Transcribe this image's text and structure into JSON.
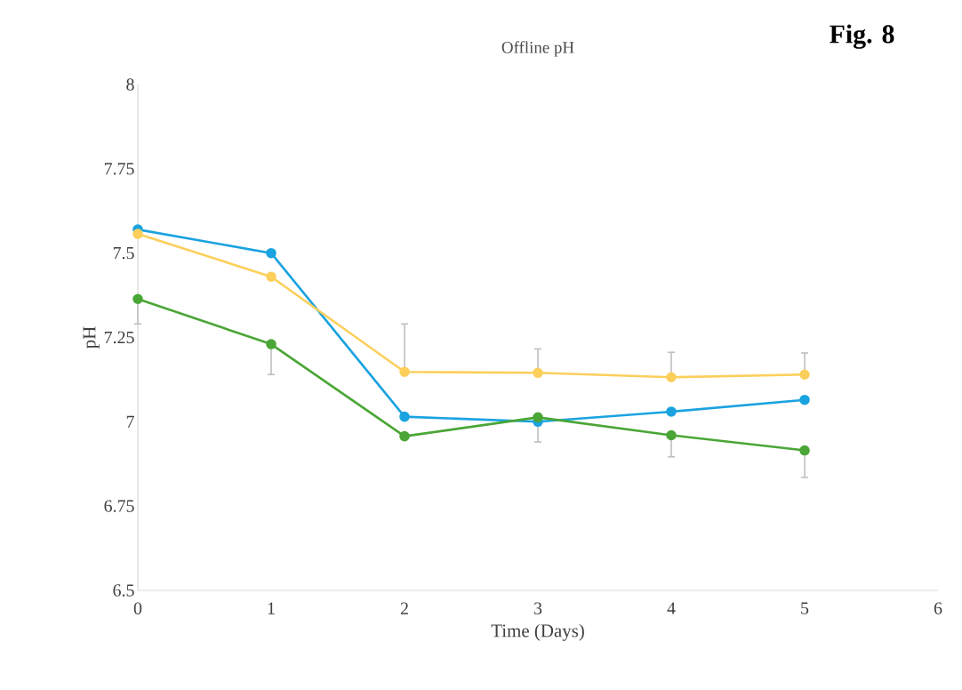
{
  "chart_data": {
    "type": "line",
    "title": "Offline pH",
    "xlabel": "Time (Days)",
    "ylabel": "pH",
    "annotations": [
      "Fig. 8"
    ],
    "x": [
      0,
      1,
      2,
      3,
      4,
      5
    ],
    "xlim": [
      0,
      6
    ],
    "xticks": [
      0,
      1,
      2,
      3,
      4,
      5,
      6
    ],
    "ylim": [
      6.5,
      8
    ],
    "yticks": [
      {
        "value": 6.5,
        "label": "6.5"
      },
      {
        "value": 6.75,
        "label": "6.75"
      },
      {
        "value": 7,
        "label": "7"
      },
      {
        "value": 7.25,
        "label": "7.25"
      },
      {
        "value": 7.5,
        "label": "7.5"
      },
      {
        "value": 7.75,
        "label": "7.75"
      },
      {
        "value": 8,
        "label": "8"
      }
    ],
    "grid": false,
    "legend": false,
    "marker": "circle",
    "line_style": "solid",
    "series": [
      {
        "color": "#1aa3e0",
        "values": [
          7.57,
          7.5,
          7.015,
          7.0,
          7.03,
          7.065
        ]
      },
      {
        "color": "#fccf5b",
        "values": [
          7.557,
          7.43,
          7.148,
          7.145,
          7.132,
          7.14
        ],
        "errors": [
          null,
          null,
          [
            7.148,
            7.29
          ],
          [
            7.145,
            7.216
          ],
          [
            7.132,
            7.206
          ],
          [
            7.14,
            7.204
          ]
        ]
      },
      {
        "color": "#4aa636",
        "values": [
          7.364,
          7.23,
          6.957,
          7.013,
          6.96,
          6.915
        ],
        "errors": [
          [
            7.29,
            7.364
          ],
          [
            7.14,
            7.23
          ],
          null,
          [
            6.94,
            7.013
          ],
          [
            6.896,
            6.96
          ],
          [
            6.835,
            6.915
          ]
        ]
      }
    ]
  }
}
